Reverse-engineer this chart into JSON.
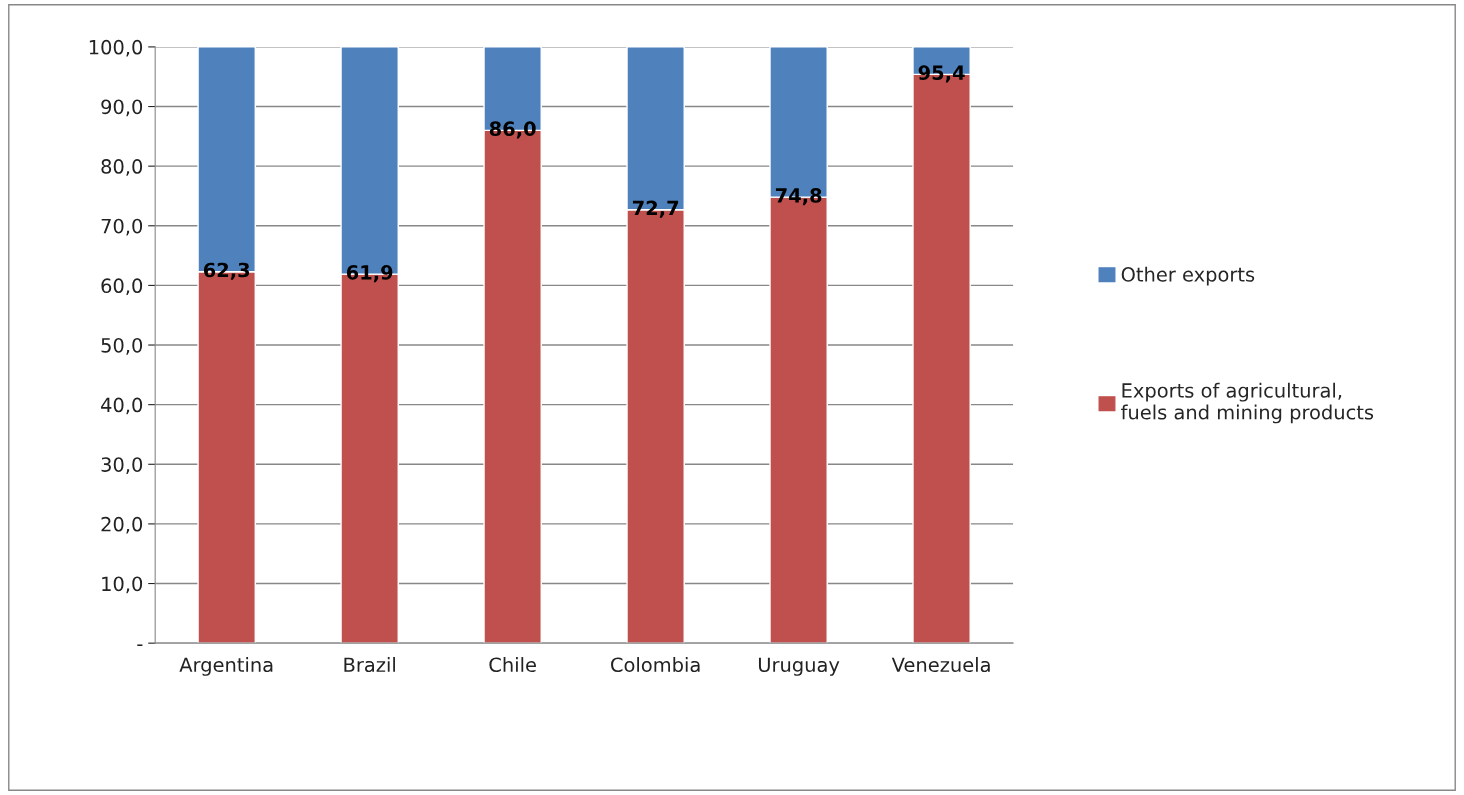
{
  "chart_data": {
    "type": "bar",
    "stacked": true,
    "categories": [
      "Argentina",
      "Brazil",
      "Chile",
      "Colombia",
      "Uruguay",
      "Venezuela"
    ],
    "series": [
      {
        "name": "Exports of agricultural,\nfuels and mining products",
        "color": "#c0504d",
        "values": [
          62.3,
          61.9,
          86.0,
          72.7,
          74.8,
          95.4
        ],
        "value_labels": [
          "62,3",
          "61,9",
          "86,0",
          "72,7",
          "74,8",
          "95,4"
        ]
      },
      {
        "name": "Other exports",
        "color": "#4f81bd",
        "values": [
          37.7,
          38.1,
          14.0,
          27.3,
          25.2,
          4.6
        ]
      }
    ],
    "ylim": [
      0,
      100
    ],
    "yticks": [
      {
        "value": 0,
        "label": "-"
      },
      {
        "value": 10,
        "label": "10,0"
      },
      {
        "value": 20,
        "label": "20,0"
      },
      {
        "value": 30,
        "label": "30,0"
      },
      {
        "value": 40,
        "label": "40,0"
      },
      {
        "value": 50,
        "label": "50,0"
      },
      {
        "value": 60,
        "label": "60,0"
      },
      {
        "value": 70,
        "label": "70,0"
      },
      {
        "value": 80,
        "label": "80,0"
      },
      {
        "value": 90,
        "label": "90,0"
      },
      {
        "value": 100,
        "label": "100,0"
      }
    ],
    "grid": "y",
    "legend": "right"
  }
}
